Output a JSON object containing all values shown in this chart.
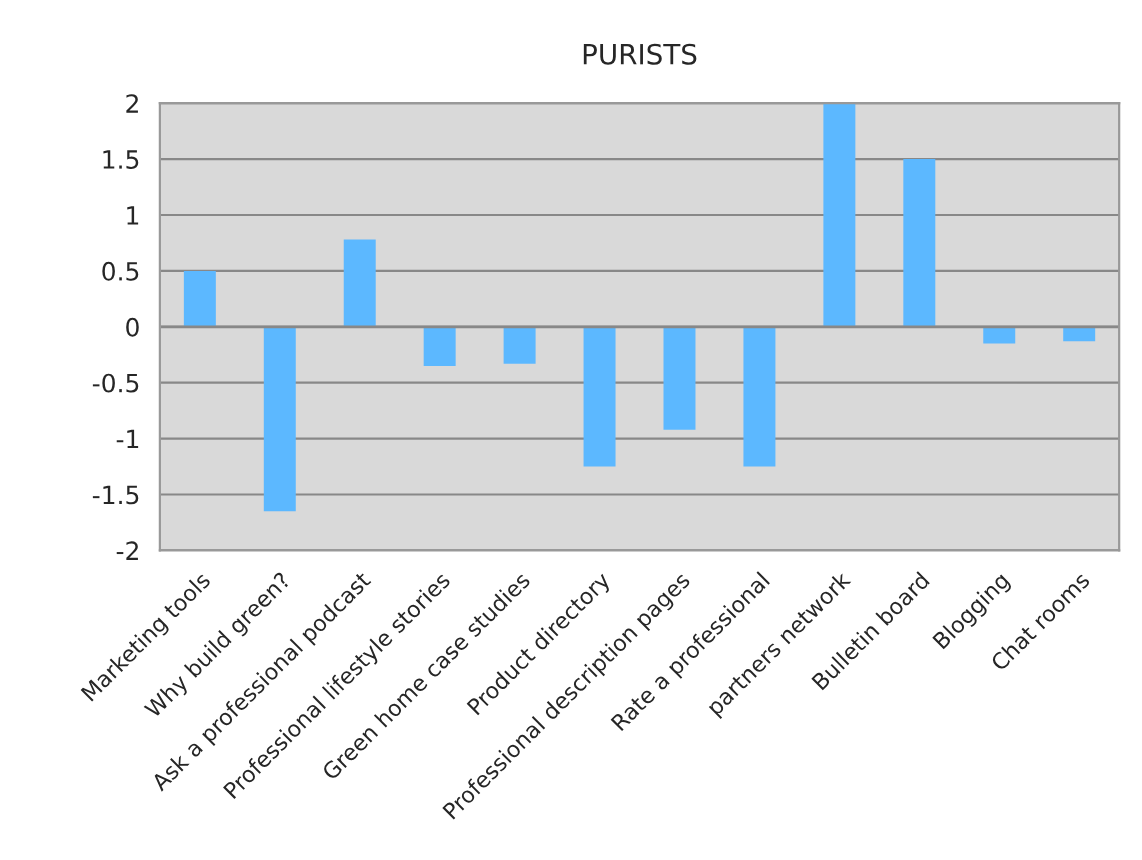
{
  "chart_data": {
    "type": "bar",
    "title": "PURISTS",
    "categories": [
      "Marketing tools",
      "Why build green?",
      "Ask a professional podcast",
      "Professional lifestyle stories",
      "Green home case studies",
      "Product directory",
      "Professional description pages",
      "Rate a professional",
      "partners network",
      "Bulletin board",
      "Blogging",
      "Chat rooms"
    ],
    "values": [
      0.5,
      -1.65,
      0.78,
      -0.35,
      -0.33,
      -1.25,
      -0.92,
      -1.25,
      2,
      1.5,
      -0.15,
      -0.13
    ],
    "color": "#5cb8ff",
    "ylim": [
      -2,
      2
    ],
    "yticks": [
      -2,
      -1.5,
      -1,
      -0.5,
      0,
      0.5,
      1,
      1.5,
      2
    ],
    "grid": "y"
  }
}
